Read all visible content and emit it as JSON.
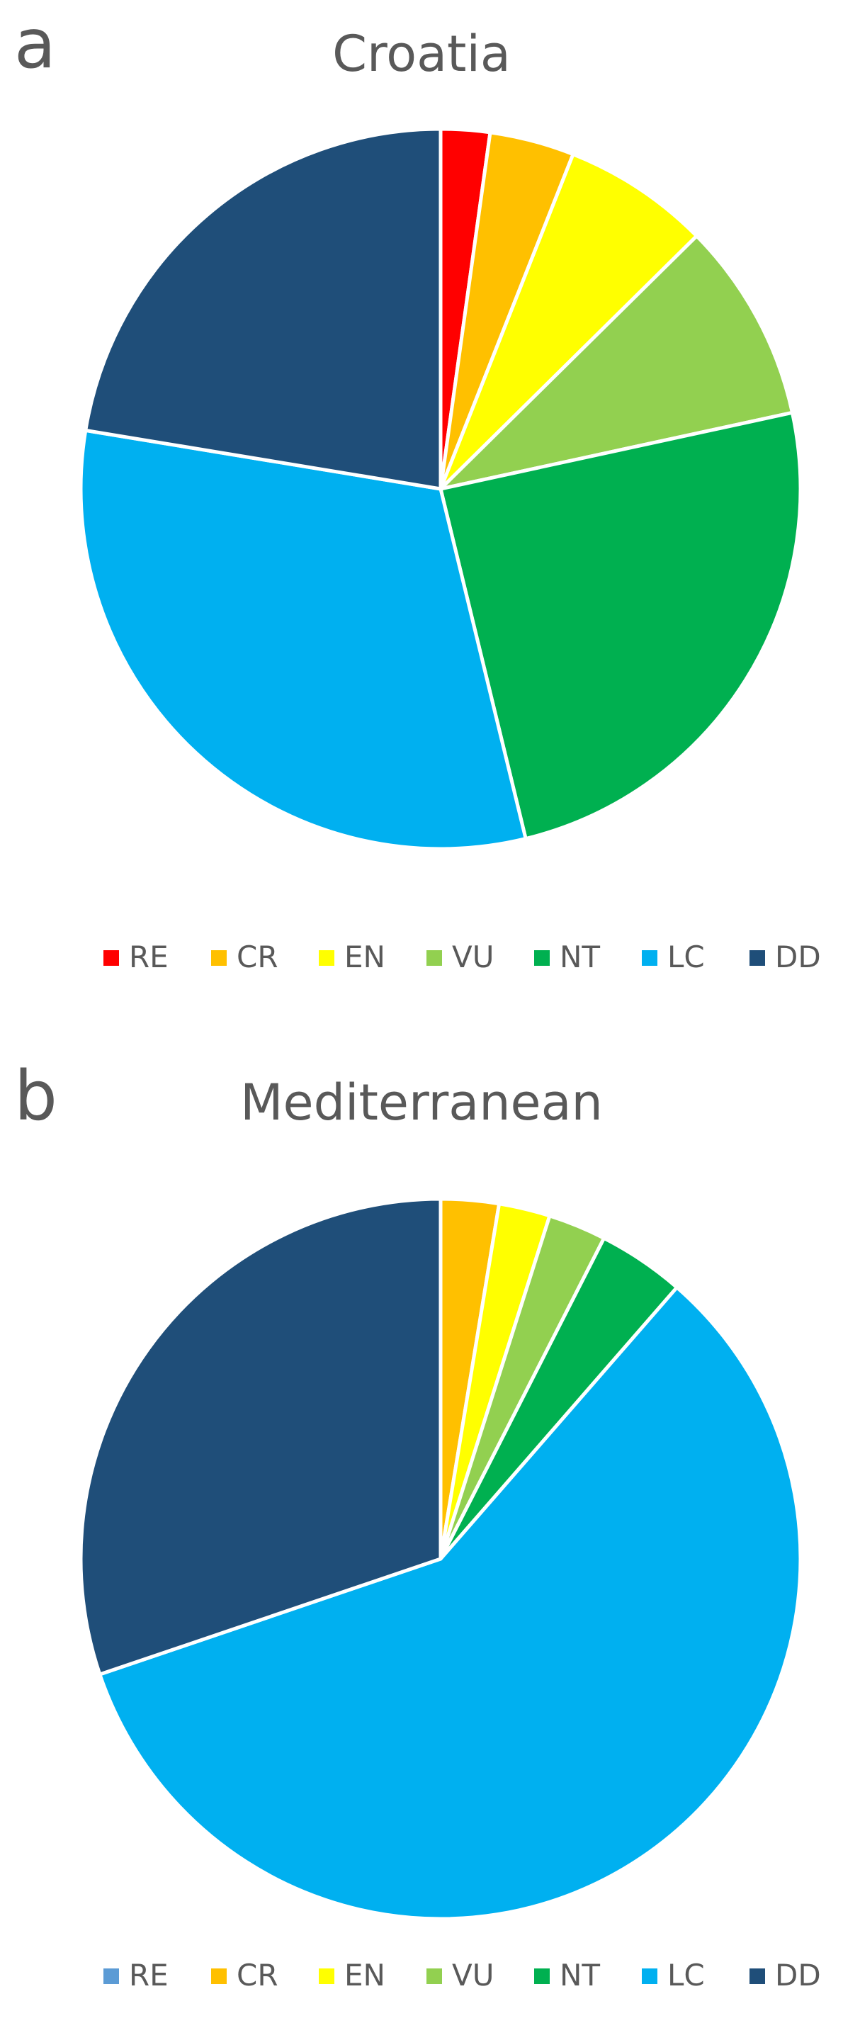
{
  "chart_data": [
    {
      "type": "pie",
      "panel": "a",
      "title": "Croatia",
      "categories": [
        "RE",
        "CR",
        "EN",
        "VU",
        "NT",
        "LC",
        "DD"
      ],
      "values": [
        2.2,
        3.8,
        6.6,
        9.0,
        24.6,
        31.4,
        22.4
      ],
      "unit": "percent",
      "colors": [
        "#ff0000",
        "#ffc000",
        "#ffff00",
        "#92d050",
        "#00b050",
        "#00b0f0",
        "#1f4e79"
      ],
      "legend_colors": [
        "#ff0000",
        "#ffc000",
        "#ffff00",
        "#92d050",
        "#00b050",
        "#00b0f0",
        "#1f4e79"
      ],
      "start": "12 o'clock, clockwise",
      "legend_position": "bottom"
    },
    {
      "type": "pie",
      "panel": "b",
      "title": "Mediterranean",
      "categories": [
        "RE",
        "CR",
        "EN",
        "VU",
        "NT",
        "LC",
        "DD"
      ],
      "values": [
        0,
        2.6,
        2.3,
        2.6,
        3.9,
        58.4,
        30.2
      ],
      "unit": "percent",
      "colors": [
        "#5b9bd5",
        "#ffc000",
        "#ffff00",
        "#92d050",
        "#00b050",
        "#00b0f0",
        "#1f4e79"
      ],
      "legend_colors": [
        "#5b9bd5",
        "#ffc000",
        "#ffff00",
        "#92d050",
        "#00b050",
        "#00b0f0",
        "#1f4e79"
      ],
      "start": "12 o'clock, clockwise",
      "legend_position": "bottom"
    }
  ]
}
